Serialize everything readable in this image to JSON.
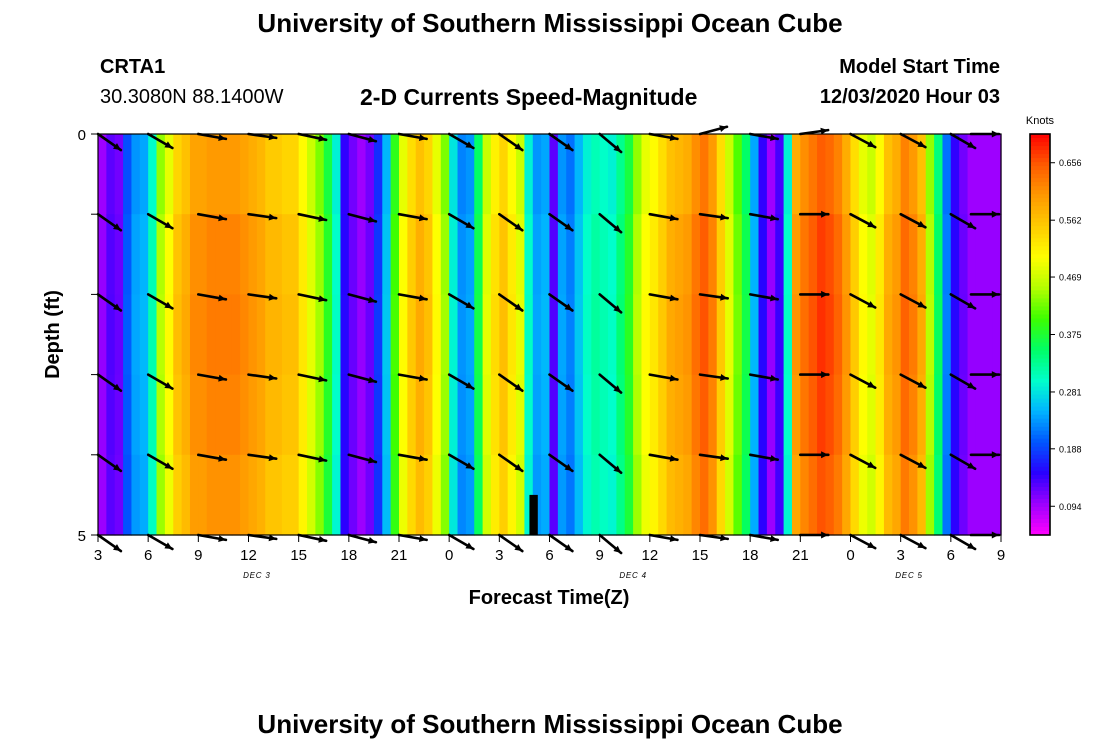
{
  "page": {
    "title": "University of Southern Mississippi Ocean Cube",
    "footer_title": "University of Southern Mississippi Ocean Cube"
  },
  "station": {
    "name": "CRTA1",
    "coords": "30.3080N 88.1400W"
  },
  "model": {
    "start_label": "Model Start Time",
    "start_value": "12/03/2020 Hour 03"
  },
  "colors": {
    "arrow": "#000000",
    "frame": "#000000",
    "palette": [
      "#ff00ff",
      "#9d00ff",
      "#2a00ff",
      "#0055ff",
      "#00b3ff",
      "#00ffcc",
      "#00ff66",
      "#3dff00",
      "#b3ff00",
      "#ffff00",
      "#ffcc00",
      "#ff9900",
      "#ff5a00",
      "#ff0000"
    ]
  },
  "chart_data": {
    "type": "heatmap",
    "title": "2-D Currents Speed-Magnitude",
    "xlabel": "Forecast Time(Z)",
    "ylabel": "Depth (ft)",
    "x_ticks": [
      "3",
      "6",
      "9",
      "12",
      "15",
      "18",
      "21",
      "0",
      "3",
      "6",
      "9",
      "12",
      "15",
      "18",
      "21",
      "0",
      "3",
      "6",
      "9"
    ],
    "x_range_hours": [
      0,
      54
    ],
    "day_labels": [
      {
        "text": "DEC 3",
        "hour": 9.5
      },
      {
        "text": "DEC 4",
        "hour": 32
      },
      {
        "text": "DEC 5",
        "hour": 48.5
      }
    ],
    "y_range": [
      0,
      5
    ],
    "y_ticks": [
      "0",
      "5"
    ],
    "colorbar": {
      "title": "Knots",
      "min": 0.047,
      "max": 0.703,
      "ticks": [
        "0.656",
        "0.562",
        "0.469",
        "0.375",
        "0.281",
        "0.188",
        "0.094"
      ],
      "tick_values": [
        0.656,
        0.562,
        0.469,
        0.375,
        0.281,
        0.188,
        0.094
      ]
    },
    "speed_column_hours": [
      0,
      0.5,
      1,
      1.5,
      2,
      2.5,
      3,
      3.5,
      4,
      4.5,
      5,
      5.5,
      6,
      6.5,
      7,
      7.5,
      8,
      8.5,
      9,
      9.5,
      10,
      10.5,
      11,
      11.5,
      12,
      12.5,
      13,
      13.5,
      14,
      14.5,
      15,
      15.5,
      16,
      16.5,
      17,
      17.5,
      18,
      18.5,
      19,
      19.5,
      20,
      20.5,
      21,
      21.5,
      22,
      22.5,
      23,
      23.5,
      24,
      24.5,
      25,
      25.5,
      26,
      26.5,
      27,
      27.5,
      28,
      28.5,
      29,
      29.5,
      30,
      30.5,
      31,
      31.5,
      32,
      32.5,
      33,
      33.5,
      34,
      34.5,
      35,
      35.5,
      36,
      36.5,
      37,
      37.5,
      38,
      38.5,
      39,
      39.5,
      40,
      40.5,
      41,
      41.5,
      42,
      42.5,
      43,
      43.5,
      44,
      44.5,
      45,
      45.5,
      46,
      46.5,
      47,
      47.5,
      48,
      48.5,
      49,
      49.5,
      50,
      50.5,
      51,
      51.5,
      52,
      52.5,
      53,
      53.5
    ],
    "speed_knots": [
      0.1,
      0.13,
      0.12,
      0.2,
      0.24,
      0.25,
      0.31,
      0.45,
      0.5,
      0.56,
      0.58,
      0.61,
      0.61,
      0.62,
      0.62,
      0.62,
      0.62,
      0.61,
      0.6,
      0.59,
      0.57,
      0.57,
      0.56,
      0.56,
      0.52,
      0.48,
      0.44,
      0.38,
      0.3,
      0.15,
      0.12,
      0.1,
      0.12,
      0.18,
      0.26,
      0.4,
      0.5,
      0.55,
      0.58,
      0.56,
      0.5,
      0.44,
      0.29,
      0.23,
      0.24,
      0.36,
      0.48,
      0.53,
      0.56,
      0.52,
      0.48,
      0.3,
      0.24,
      0.25,
      0.13,
      0.24,
      0.22,
      0.26,
      0.3,
      0.32,
      0.31,
      0.3,
      0.34,
      0.38,
      0.45,
      0.5,
      0.52,
      0.55,
      0.58,
      0.59,
      0.6,
      0.63,
      0.65,
      0.62,
      0.55,
      0.48,
      0.42,
      0.36,
      0.25,
      0.15,
      0.1,
      0.14,
      0.3,
      0.6,
      0.63,
      0.65,
      0.67,
      0.66,
      0.64,
      0.6,
      0.55,
      0.5,
      0.48,
      0.52,
      0.58,
      0.6,
      0.64,
      0.62,
      0.58,
      0.45,
      0.35,
      0.22,
      0.15,
      0.12,
      0.1,
      0.1,
      0.1,
      0.1
    ],
    "arrow_hours": [
      0,
      3,
      6,
      9,
      12,
      15,
      18,
      21,
      24,
      27,
      30,
      33,
      36,
      39,
      42,
      45,
      48,
      51,
      54
    ],
    "arrow_angles_deg": [
      35,
      30,
      10,
      8,
      12,
      15,
      10,
      30,
      35,
      35,
      40,
      10,
      8,
      10,
      0,
      28,
      28,
      30,
      0
    ],
    "arrow_first_row_angles_deg": [
      35,
      30,
      10,
      8,
      12,
      15,
      10,
      30,
      35,
      35,
      40,
      10,
      -15,
      10,
      -8,
      28,
      28,
      30,
      0
    ],
    "arrow_depths_ft": [
      0,
      1,
      2,
      3,
      4,
      5
    ],
    "wet_dry_marker": {
      "hour_start": 25.8,
      "hour_end": 26.3,
      "depth_start_ft": 4.5,
      "depth_end_ft": 5
    }
  }
}
